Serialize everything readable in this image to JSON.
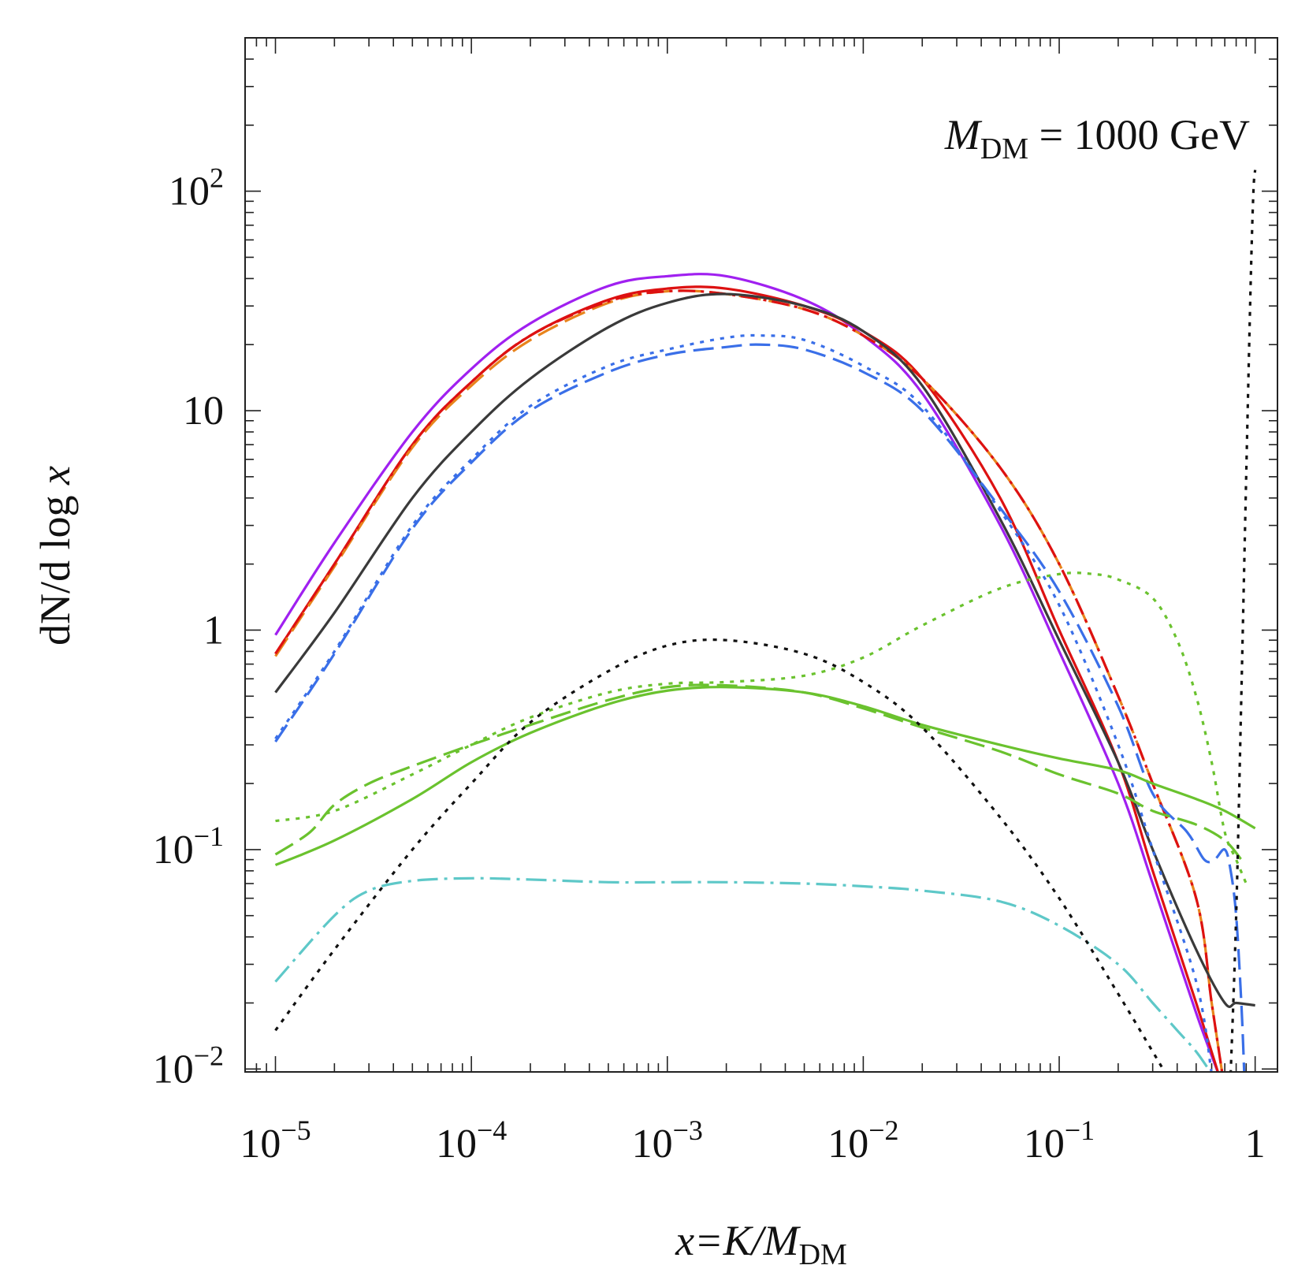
{
  "chart_data": {
    "type": "line",
    "title": "",
    "annotation": {
      "symbol": "M",
      "subscript": "DM",
      "text": " = 1000 GeV"
    },
    "xlabel": {
      "pre": "x",
      "mid": "=K/M",
      "sub": "DM"
    },
    "ylabel": {
      "pre": "dN/d log ",
      "var": "x"
    },
    "x_scale": "log",
    "y_scale": "log",
    "xlim": [
      7e-06,
      1.3
    ],
    "ylim": [
      0.0097,
      500
    ],
    "x_ticks": [
      {
        "value": 1e-05,
        "base": "10",
        "exp": "−5"
      },
      {
        "value": 0.0001,
        "base": "10",
        "exp": "−4"
      },
      {
        "value": 0.001,
        "base": "10",
        "exp": "−3"
      },
      {
        "value": 0.01,
        "base": "10",
        "exp": "−2"
      },
      {
        "value": 0.1,
        "base": "10",
        "exp": "−1"
      },
      {
        "value": 1,
        "base": "1",
        "exp": ""
      }
    ],
    "y_ticks": [
      {
        "value": 0.01,
        "base": "10",
        "exp": "−2"
      },
      {
        "value": 0.1,
        "base": "10",
        "exp": "−1"
      },
      {
        "value": 1,
        "base": "1",
        "exp": ""
      },
      {
        "value": 10,
        "base": "10",
        "exp": ""
      },
      {
        "value": 100,
        "base": "10",
        "exp": "2"
      }
    ],
    "series": [
      {
        "name": "purple-solid",
        "color": "#a020f0",
        "dash": "solid",
        "x": [
          1e-05,
          2e-05,
          5e-05,
          0.0001,
          0.0002,
          0.0005,
          0.001,
          0.002,
          0.005,
          0.01,
          0.02,
          0.05,
          0.1,
          0.2,
          0.3,
          0.5,
          0.65
        ],
        "y": [
          0.95,
          2.5,
          8.0,
          15.5,
          25,
          37,
          41,
          41,
          32,
          22,
          12,
          3.0,
          0.8,
          0.2,
          0.07,
          0.018,
          0.0095
        ]
      },
      {
        "name": "red-solid",
        "color": "#dd1111",
        "dash": "solid",
        "x": [
          1e-05,
          2e-05,
          5e-05,
          0.0001,
          0.0002,
          0.0005,
          0.001,
          0.002,
          0.005,
          0.01,
          0.02,
          0.05,
          0.1,
          0.2,
          0.3,
          0.5,
          0.65
        ],
        "y": [
          0.78,
          2.0,
          7.0,
          13.5,
          22,
          32,
          36,
          36,
          30,
          23,
          14,
          4.0,
          1.0,
          0.25,
          0.08,
          0.02,
          0.0095
        ]
      },
      {
        "name": "orange-dashed",
        "color": "#e8841c",
        "dash": "28 10",
        "x": [
          1e-05,
          2e-05,
          5e-05,
          0.0001,
          0.0002,
          0.0005,
          0.001,
          0.002,
          0.005,
          0.01,
          0.02,
          0.05,
          0.1,
          0.2,
          0.3,
          0.5,
          0.6,
          0.68
        ],
        "y": [
          0.76,
          1.95,
          6.8,
          13,
          21,
          31,
          35,
          34,
          29,
          22,
          14,
          5.5,
          2.0,
          0.5,
          0.2,
          0.06,
          0.02,
          0.0095
        ]
      },
      {
        "name": "red-dotdashed",
        "color": "#dd1111",
        "dash": "22 7 4 7",
        "x": [
          1e-05,
          2e-05,
          5e-05,
          0.0001,
          0.0002,
          0.0005,
          0.001,
          0.002,
          0.005,
          0.01,
          0.02,
          0.05,
          0.1,
          0.2,
          0.3,
          0.5,
          0.6,
          0.68
        ],
        "y": [
          0.78,
          2.0,
          7.0,
          13.5,
          22,
          31.5,
          35,
          34,
          29,
          22,
          14,
          5.5,
          2.0,
          0.5,
          0.2,
          0.06,
          0.02,
          0.0095
        ]
      },
      {
        "name": "dark-gray-solid",
        "color": "#3a3a3a",
        "dash": "solid",
        "x": [
          1e-05,
          2e-05,
          5e-05,
          0.0001,
          0.0002,
          0.0005,
          0.001,
          0.002,
          0.005,
          0.01,
          0.02,
          0.05,
          0.1,
          0.2,
          0.3,
          0.5,
          0.7,
          0.8,
          1.0
        ],
        "y": [
          0.52,
          1.2,
          4.0,
          8.0,
          14,
          24,
          31,
          34,
          30,
          23,
          13,
          3.2,
          0.9,
          0.25,
          0.1,
          0.035,
          0.02,
          0.02,
          0.0195
        ]
      },
      {
        "name": "blue-dotted",
        "color": "#3a6fe8",
        "dash": "5 8",
        "x": [
          1e-05,
          2e-05,
          5e-05,
          0.0001,
          0.0002,
          0.0005,
          0.001,
          0.002,
          0.003,
          0.005,
          0.01,
          0.02,
          0.05,
          0.1,
          0.2,
          0.3,
          0.5,
          0.6
        ],
        "y": [
          0.32,
          0.8,
          3.0,
          6.0,
          10.5,
          16,
          19,
          21.5,
          22,
          21,
          16,
          10.5,
          3.5,
          1.3,
          0.3,
          0.1,
          0.025,
          0.0095
        ]
      },
      {
        "name": "blue-dashed",
        "color": "#3a6fe8",
        "dash": "26 10",
        "x": [
          1e-05,
          2e-05,
          5e-05,
          0.0001,
          0.0002,
          0.0005,
          0.001,
          0.002,
          0.003,
          0.005,
          0.01,
          0.02,
          0.05,
          0.1,
          0.2,
          0.3,
          0.45,
          0.55,
          0.62,
          0.7,
          0.75,
          0.8,
          0.85,
          0.88
        ],
        "y": [
          0.31,
          0.78,
          2.9,
          5.8,
          10,
          15,
          18,
          19.5,
          20,
          19,
          15,
          10,
          3.6,
          1.5,
          0.45,
          0.18,
          0.12,
          0.09,
          0.09,
          0.1,
          0.08,
          0.05,
          0.02,
          0.0095
        ]
      },
      {
        "name": "green-dotted",
        "color": "#6ac22e",
        "dash": "5 8",
        "x": [
          1e-05,
          2e-05,
          5e-05,
          0.0001,
          0.0002,
          0.0005,
          0.001,
          0.002,
          0.005,
          0.01,
          0.02,
          0.05,
          0.1,
          0.15,
          0.2,
          0.3,
          0.4,
          0.5,
          0.6,
          0.7,
          0.8,
          0.9
        ],
        "y": [
          0.135,
          0.15,
          0.22,
          0.3,
          0.4,
          0.52,
          0.57,
          0.58,
          0.62,
          0.75,
          1.05,
          1.55,
          1.8,
          1.8,
          1.7,
          1.4,
          0.9,
          0.5,
          0.25,
          0.12,
          0.09,
          0.07
        ]
      },
      {
        "name": "green-dashed",
        "color": "#6ac22e",
        "dash": "26 10",
        "x": [
          1e-05,
          1.5e-05,
          2e-05,
          3e-05,
          5e-05,
          0.0001,
          0.0002,
          0.0005,
          0.001,
          0.002,
          0.005,
          0.01,
          0.02,
          0.05,
          0.1,
          0.2,
          0.3,
          0.5,
          0.7,
          0.85
        ],
        "y": [
          0.095,
          0.12,
          0.16,
          0.2,
          0.24,
          0.3,
          0.37,
          0.48,
          0.55,
          0.56,
          0.52,
          0.44,
          0.36,
          0.28,
          0.22,
          0.18,
          0.15,
          0.13,
          0.11,
          0.09
        ]
      },
      {
        "name": "green-solid",
        "color": "#6ac22e",
        "dash": "solid",
        "x": [
          1e-05,
          2e-05,
          5e-05,
          0.0001,
          0.0002,
          0.0005,
          0.001,
          0.002,
          0.005,
          0.01,
          0.02,
          0.05,
          0.1,
          0.2,
          0.3,
          0.5,
          0.7,
          1.0
        ],
        "y": [
          0.085,
          0.11,
          0.17,
          0.25,
          0.34,
          0.46,
          0.53,
          0.55,
          0.52,
          0.45,
          0.37,
          0.3,
          0.26,
          0.23,
          0.2,
          0.17,
          0.15,
          0.125
        ]
      },
      {
        "name": "cyan-dotdashed",
        "color": "#5ec8c8",
        "dash": "26 8 4 8",
        "x": [
          1e-05,
          2e-05,
          3e-05,
          5e-05,
          0.0001,
          0.0002,
          0.0005,
          0.001,
          0.002,
          0.005,
          0.01,
          0.02,
          0.05,
          0.1,
          0.2,
          0.3,
          0.4,
          0.5,
          0.6
        ],
        "y": [
          0.025,
          0.05,
          0.065,
          0.072,
          0.074,
          0.073,
          0.071,
          0.071,
          0.071,
          0.07,
          0.068,
          0.065,
          0.058,
          0.045,
          0.03,
          0.02,
          0.015,
          0.012,
          0.0095
        ]
      },
      {
        "name": "black-dotted",
        "color": "#111111",
        "dash": "5 8",
        "x": [
          1e-05,
          2e-05,
          5e-05,
          0.0001,
          0.0002,
          0.0005,
          0.001,
          0.002,
          0.005,
          0.01,
          0.02,
          0.05,
          0.1,
          0.2,
          0.3,
          0.35
        ],
        "y": [
          0.015,
          0.035,
          0.1,
          0.2,
          0.38,
          0.65,
          0.85,
          0.9,
          0.78,
          0.58,
          0.36,
          0.14,
          0.06,
          0.022,
          0.012,
          0.0095
        ]
      },
      {
        "name": "black-dotted-endpoint",
        "color": "#111111",
        "dash": "5 8",
        "x": [
          0.75,
          0.8,
          0.85,
          0.9,
          0.95,
          0.98,
          1.0
        ],
        "y": [
          0.0095,
          0.05,
          0.5,
          5,
          40,
          100,
          125
        ]
      }
    ]
  }
}
